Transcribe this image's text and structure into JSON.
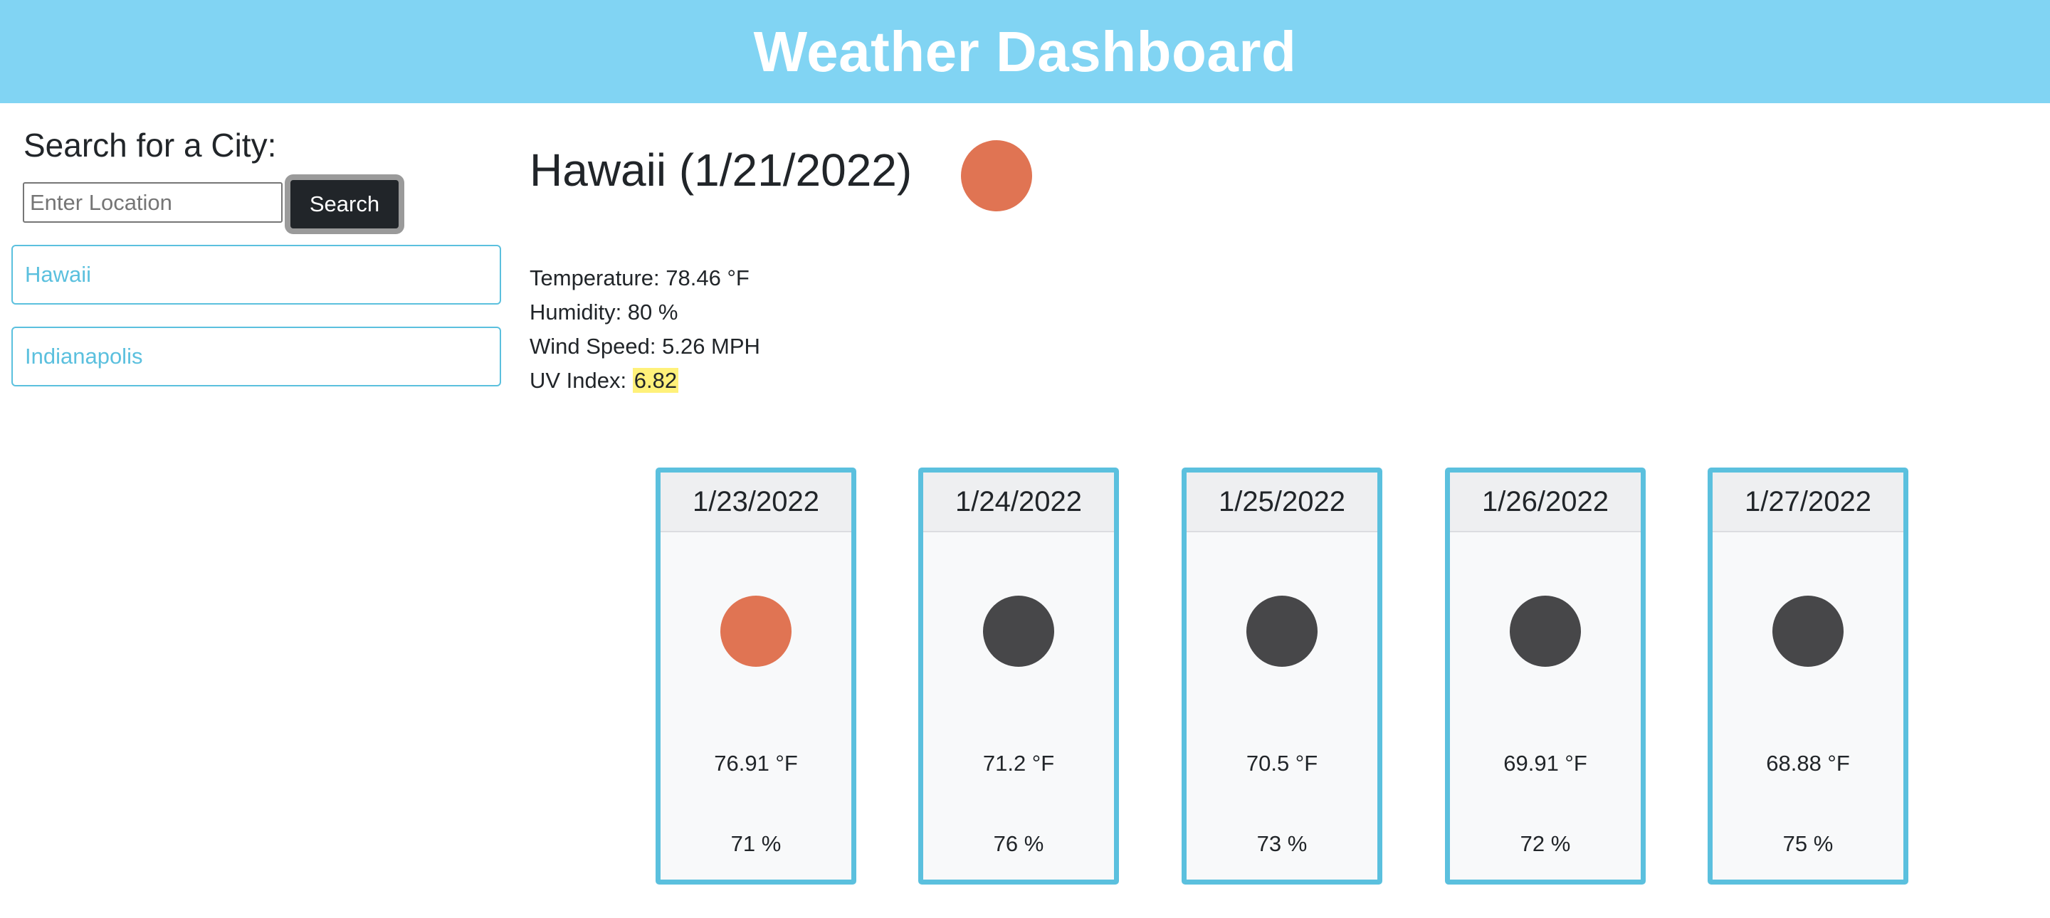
{
  "header": {
    "title": "Weather Dashboard",
    "background": "#81d4f3"
  },
  "search": {
    "heading": "Search for a City:",
    "placeholder": "Enter Location",
    "button_label": "Search"
  },
  "history": [
    {
      "label": "Hawaii"
    },
    {
      "label": "Indianapolis"
    }
  ],
  "current": {
    "title": "Hawaii (1/21/2022)",
    "icon": "sun-icon",
    "icon_color": "#e07453",
    "temperature_label": "Temperature: 78.46 °F",
    "humidity_label": "Humidity: 80 %",
    "wind_label": "Wind Speed: 5.26 MPH",
    "uv_label": "UV Index: ",
    "uv_value": "6.82",
    "uv_color": "#fff17a"
  },
  "forecast": [
    {
      "date": "1/23/2022",
      "icon": "sun-icon",
      "icon_color": "#e07453",
      "temp": "76.91 °F",
      "humidity": "71 %"
    },
    {
      "date": "1/24/2022",
      "icon": "moon-icon",
      "icon_color": "#474749",
      "temp": "71.2 °F",
      "humidity": "76 %"
    },
    {
      "date": "1/25/2022",
      "icon": "moon-icon",
      "icon_color": "#474749",
      "temp": "70.5 °F",
      "humidity": "73 %"
    },
    {
      "date": "1/26/2022",
      "icon": "moon-icon",
      "icon_color": "#474749",
      "temp": "69.91 °F",
      "humidity": "72 %"
    },
    {
      "date": "1/27/2022",
      "icon": "moon-icon",
      "icon_color": "#474749",
      "temp": "68.88 °F",
      "humidity": "75 %"
    }
  ],
  "accent_color": "#5bc0de"
}
